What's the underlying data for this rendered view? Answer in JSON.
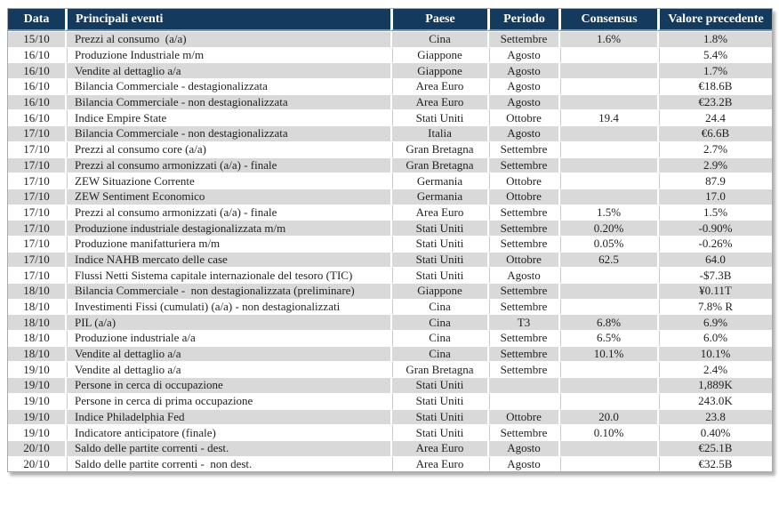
{
  "colors": {
    "header_bg": "#143A5E",
    "header_border": "#7E96AC",
    "row_gray": "#D9D9D9",
    "row_white": "#FFFFFF",
    "grid_gray": "#C9C9C9",
    "outer_border": "#A9A9A9",
    "text": "#1F1F1F"
  },
  "table": {
    "headers": {
      "data": "Data",
      "eventi": "Principali eventi",
      "paese": "Paese",
      "periodo": "Periodo",
      "consensus": "Consensus",
      "valore": "Valore precedente"
    },
    "rows": [
      [
        "15/10",
        "Prezzi al consumo  (a/a)",
        "Cina",
        "Settembre",
        "1.6%",
        "1.8%"
      ],
      [
        "16/10",
        "Produzione Industriale m/m",
        "Giappone",
        "Agosto",
        "",
        "5.4%"
      ],
      [
        "16/10",
        "Vendite al dettaglio a/a",
        "Giappone",
        "Agosto",
        "",
        "1.7%"
      ],
      [
        "16/10",
        "Bilancia Commerciale - destagionalizzata",
        "Area Euro",
        "Agosto",
        "",
        "€18.6B"
      ],
      [
        "16/10",
        "Bilancia Commerciale - non destagionalizzata",
        "Area Euro",
        "Agosto",
        "",
        "€23.2B"
      ],
      [
        "16/10",
        "Indice Empire State",
        "Stati Uniti",
        "Ottobre",
        "19.4",
        "24.4"
      ],
      [
        "17/10",
        "Bilancia Commerciale - non destagionalizzata",
        "Italia",
        "Agosto",
        "",
        "€6.6B"
      ],
      [
        "17/10",
        "Prezzi al consumo core (a/a)",
        "Gran Bretagna",
        "Settembre",
        "",
        "2.7%"
      ],
      [
        "17/10",
        "Prezzi al consumo armonizzati (a/a) - finale",
        "Gran Bretagna",
        "Settembre",
        "",
        "2.9%"
      ],
      [
        "17/10",
        "ZEW Situazione Corrente",
        "Germania",
        "Ottobre",
        "",
        "87.9"
      ],
      [
        "17/10",
        "ZEW Sentiment Economico",
        "Germania",
        "Ottobre",
        "",
        "17.0"
      ],
      [
        "17/10",
        "Prezzi al consumo armonizzati (a/a) - finale",
        "Area Euro",
        "Settembre",
        "1.5%",
        "1.5%"
      ],
      [
        "17/10",
        "Produzione industriale destagionalizzata m/m",
        "Stati Uniti",
        "Settembre",
        "0.20%",
        "-0.90%"
      ],
      [
        "17/10",
        "Produzione manifatturiera m/m",
        "Stati Uniti",
        "Settembre",
        "0.05%",
        "-0.26%"
      ],
      [
        "17/10",
        "Indice NAHB mercato delle case",
        "Stati Uniti",
        "Ottobre",
        "62.5",
        "64.0"
      ],
      [
        "17/10",
        "Flussi Netti Sistema capitale internazionale del tesoro (TIC)",
        "Stati Uniti",
        "Agosto",
        "",
        "-$7.3B"
      ],
      [
        "18/10",
        "Bilancia Commerciale -  non destagionalizzata (preliminare)",
        "Giappone",
        "Settembre",
        "",
        "¥0.11T"
      ],
      [
        "18/10",
        "Investimenti Fissi (cumulati) (a/a) - non destagionalizzati",
        "Cina",
        "Settembre",
        "",
        "7.8% R"
      ],
      [
        "18/10",
        "PIL (a/a)",
        "Cina",
        "T3",
        "6.8%",
        "6.9%"
      ],
      [
        "18/10",
        "Produzione industriale a/a",
        "Cina",
        "Settembre",
        "6.5%",
        "6.0%"
      ],
      [
        "18/10",
        "Vendite al dettaglio a/a",
        "Cina",
        "Settembre",
        "10.1%",
        "10.1%"
      ],
      [
        "19/10",
        "Vendite al dettaglio a/a",
        "Gran Bretagna",
        "Settembre",
        "",
        "2.4%"
      ],
      [
        "19/10",
        "Persone in cerca di occupazione",
        "Stati Uniti",
        "",
        "",
        "1,889K"
      ],
      [
        "19/10",
        "Persone in cerca di prima occupazione",
        "Stati Uniti",
        "",
        "",
        "243.0K"
      ],
      [
        "19/10",
        "Indice Philadelphia Fed",
        "Stati Uniti",
        "Ottobre",
        "20.0",
        "23.8"
      ],
      [
        "19/10",
        "Indicatore anticipatore (finale)",
        "Stati Uniti",
        "Settembre",
        "0.10%",
        "0.40%"
      ],
      [
        "20/10",
        "Saldo delle partite correnti - dest.",
        "Area Euro",
        "Agosto",
        "",
        "€25.1B"
      ],
      [
        "20/10",
        "Saldo delle partite correnti -  non dest.",
        "Area Euro",
        "Agosto",
        "",
        "€32.5B"
      ]
    ]
  }
}
